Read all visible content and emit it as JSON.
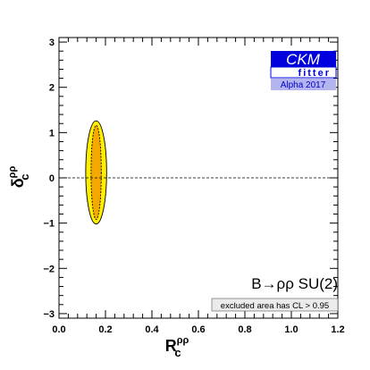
{
  "chart_data": {
    "type": "contour",
    "title": "",
    "xlabel_base": "R",
    "xlabel_sub": "c",
    "xlabel_sup": "ρρ",
    "ylabel_base": "δ",
    "ylabel_sub": "c",
    "ylabel_sup": "ρρ",
    "xlim": [
      0.0,
      1.2
    ],
    "ylim": [
      -3.1,
      3.1
    ],
    "x_ticks": [
      0.0,
      0.2,
      0.4,
      0.6,
      0.8,
      1.0,
      1.2
    ],
    "x_tick_labels": [
      "0.0",
      "0.2",
      "0.4",
      "0.6",
      "0.8",
      "1.0",
      "1.2"
    ],
    "y_ticks": [
      3,
      2,
      1,
      0,
      -1,
      -2,
      -3
    ],
    "y_tick_labels": [
      "3",
      "2",
      "1",
      "0",
      "−1",
      "−2",
      "−3"
    ],
    "reference_line": {
      "y": 0,
      "style": "dashed"
    },
    "regions": [
      {
        "level": "outer",
        "center": [
          0.16,
          0.12
        ],
        "half_width": 0.045,
        "half_height": 1.14,
        "fill": "#ffee00"
      },
      {
        "level": "inner",
        "center": [
          0.16,
          0.12
        ],
        "half_width": 0.022,
        "half_height": 1.04,
        "fill": "#f5a800"
      }
    ],
    "process_label": "B→ρρ SU(2)",
    "cl_label": "excluded area has CL > 0.95"
  },
  "logo": {
    "name": "CKM",
    "sub": "fitter",
    "year": "Alpha 2017",
    "color_primary": "#0000dd",
    "color_secondary": "#b4b4ee"
  }
}
